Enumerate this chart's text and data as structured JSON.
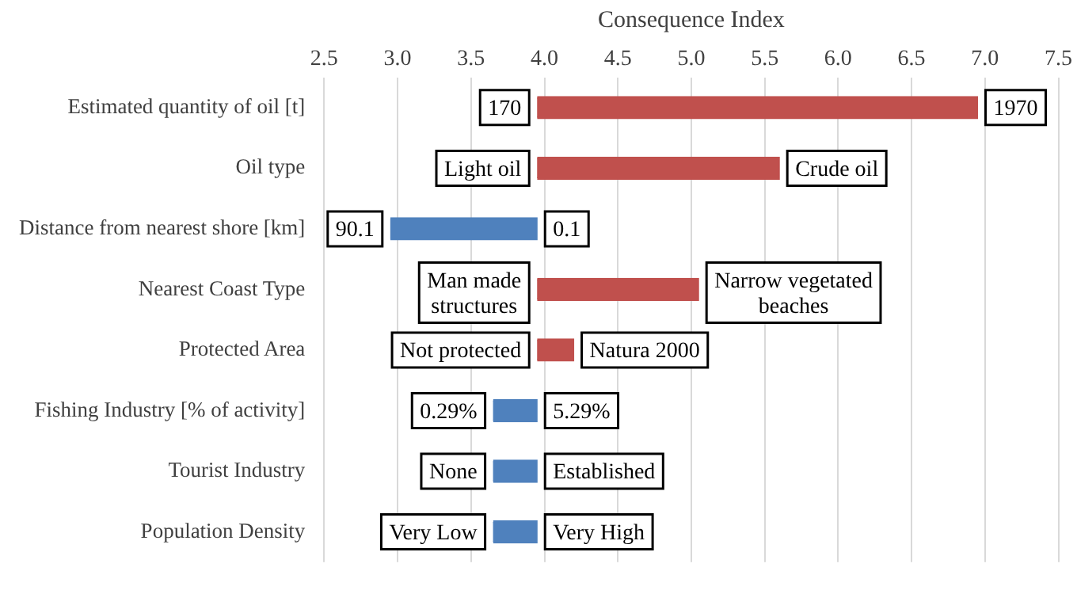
{
  "chart_data": {
    "type": "bar",
    "orientation": "horizontal",
    "xlabel": "Consequence Index",
    "categories": [
      "Estimated quantity of oil [t]",
      "Oil type",
      "Distance from nearest shore [km]",
      "Nearest Coast Type",
      "Protected Area",
      "Fishing Industry [% of activity]",
      "Tourist Industry",
      "Population Density"
    ],
    "base": [
      3.95,
      3.95,
      2.95,
      3.95,
      3.95,
      3.65,
      3.65,
      3.65
    ],
    "values": [
      3.0,
      1.65,
      1.0,
      1.1,
      0.25,
      0.3,
      0.3,
      0.3
    ],
    "colors": [
      "#c0504d",
      "#c0504d",
      "#4f81bd",
      "#c0504d",
      "#c0504d",
      "#4f81bd",
      "#4f81bd",
      "#4f81bd"
    ],
    "xlim": [
      2.5,
      7.5
    ],
    "xticks": [
      {
        "value": 2.5,
        "label": "2.5"
      },
      {
        "value": 3,
        "label": "3.0"
      },
      {
        "value": 3.5,
        "label": "3.5"
      },
      {
        "value": 4,
        "label": "4.0"
      },
      {
        "value": 4.5,
        "label": "4.5"
      },
      {
        "value": 5,
        "label": "5.0"
      },
      {
        "value": 5.5,
        "label": "5.5"
      },
      {
        "value": 6,
        "label": "6.0"
      },
      {
        "value": 6.5,
        "label": "6.5"
      },
      {
        "value": 7,
        "label": "7.0"
      },
      {
        "value": 7.5,
        "label": "7.5"
      }
    ],
    "grid": "x",
    "annotations": [
      {
        "text": "170",
        "x": 3.95,
        "y": "Estimated quantity of oil [t]"
      },
      {
        "text": "1970",
        "x": 6.95,
        "y": "Estimated quantity of oil [t]"
      },
      {
        "text": "Light oil",
        "x": 3.95,
        "y": "Oil type"
      },
      {
        "text": "Crude oil",
        "x": 5.6,
        "y": "Oil type"
      },
      {
        "text": "90.1",
        "x": 2.95,
        "y": "Distance from nearest shore [km]"
      },
      {
        "text": "0.1",
        "x": 3.95,
        "y": "Distance from nearest shore [km]"
      },
      {
        "text": "Man made structures",
        "x": 3.95,
        "y": "Nearest Coast Type"
      },
      {
        "text": "Narrow vegetated beaches",
        "x": 5.05,
        "y": "Nearest Coast Type"
      },
      {
        "text": "Not protected",
        "x": 3.95,
        "y": "Protected Area"
      },
      {
        "text": "Natura 2000",
        "x": 4.2,
        "y": "Protected Area"
      },
      {
        "text": "0.29%",
        "x": 3.65,
        "y": "Fishing Industry [% of activity]"
      },
      {
        "text": "5.29%",
        "x": 3.95,
        "y": "Fishing Industry [% of activity]"
      },
      {
        "text": "None",
        "x": 3.65,
        "y": "Tourist Industry"
      },
      {
        "text": "Established",
        "x": 3.95,
        "y": "Tourist Industry"
      },
      {
        "text": "Very Low",
        "x": 3.65,
        "y": "Population Density"
      },
      {
        "text": "Very High",
        "x": 3.95,
        "y": "Population Density"
      }
    ]
  }
}
